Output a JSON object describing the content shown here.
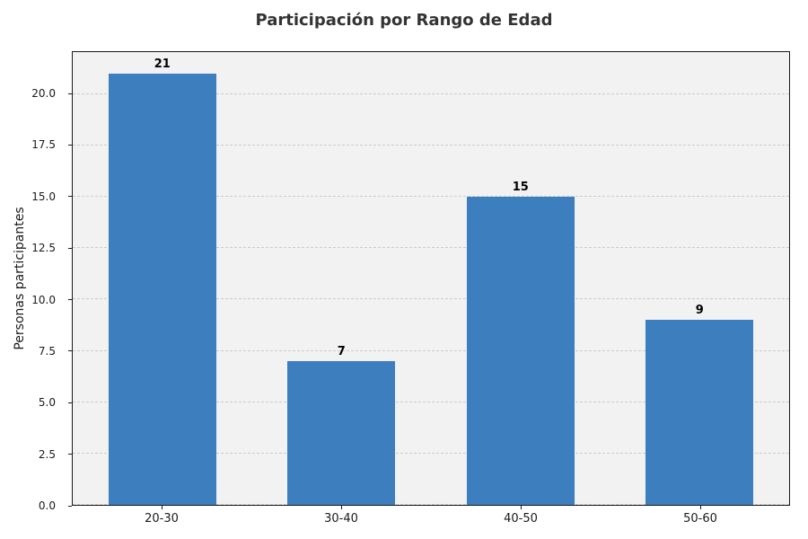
{
  "chart_data": {
    "type": "bar",
    "title": "Participación por Rango de Edad",
    "xlabel": "",
    "ylabel": "Personas participantes",
    "categories": [
      "20-30",
      "30-40",
      "40-50",
      "50-60"
    ],
    "values": [
      21,
      7,
      15,
      9
    ],
    "value_labels": [
      "21",
      "7",
      "15",
      "9"
    ],
    "yticks": [
      0,
      2.5,
      5,
      7.5,
      10,
      12.5,
      15,
      17.5,
      20
    ],
    "ylim": [
      0,
      22.05
    ],
    "grid": true,
    "legend": "none",
    "bar_color": "#3d7ebf",
    "plot_background": "#f2f2f2",
    "grid_color": "#cccccc",
    "title_color": "#333333"
  }
}
